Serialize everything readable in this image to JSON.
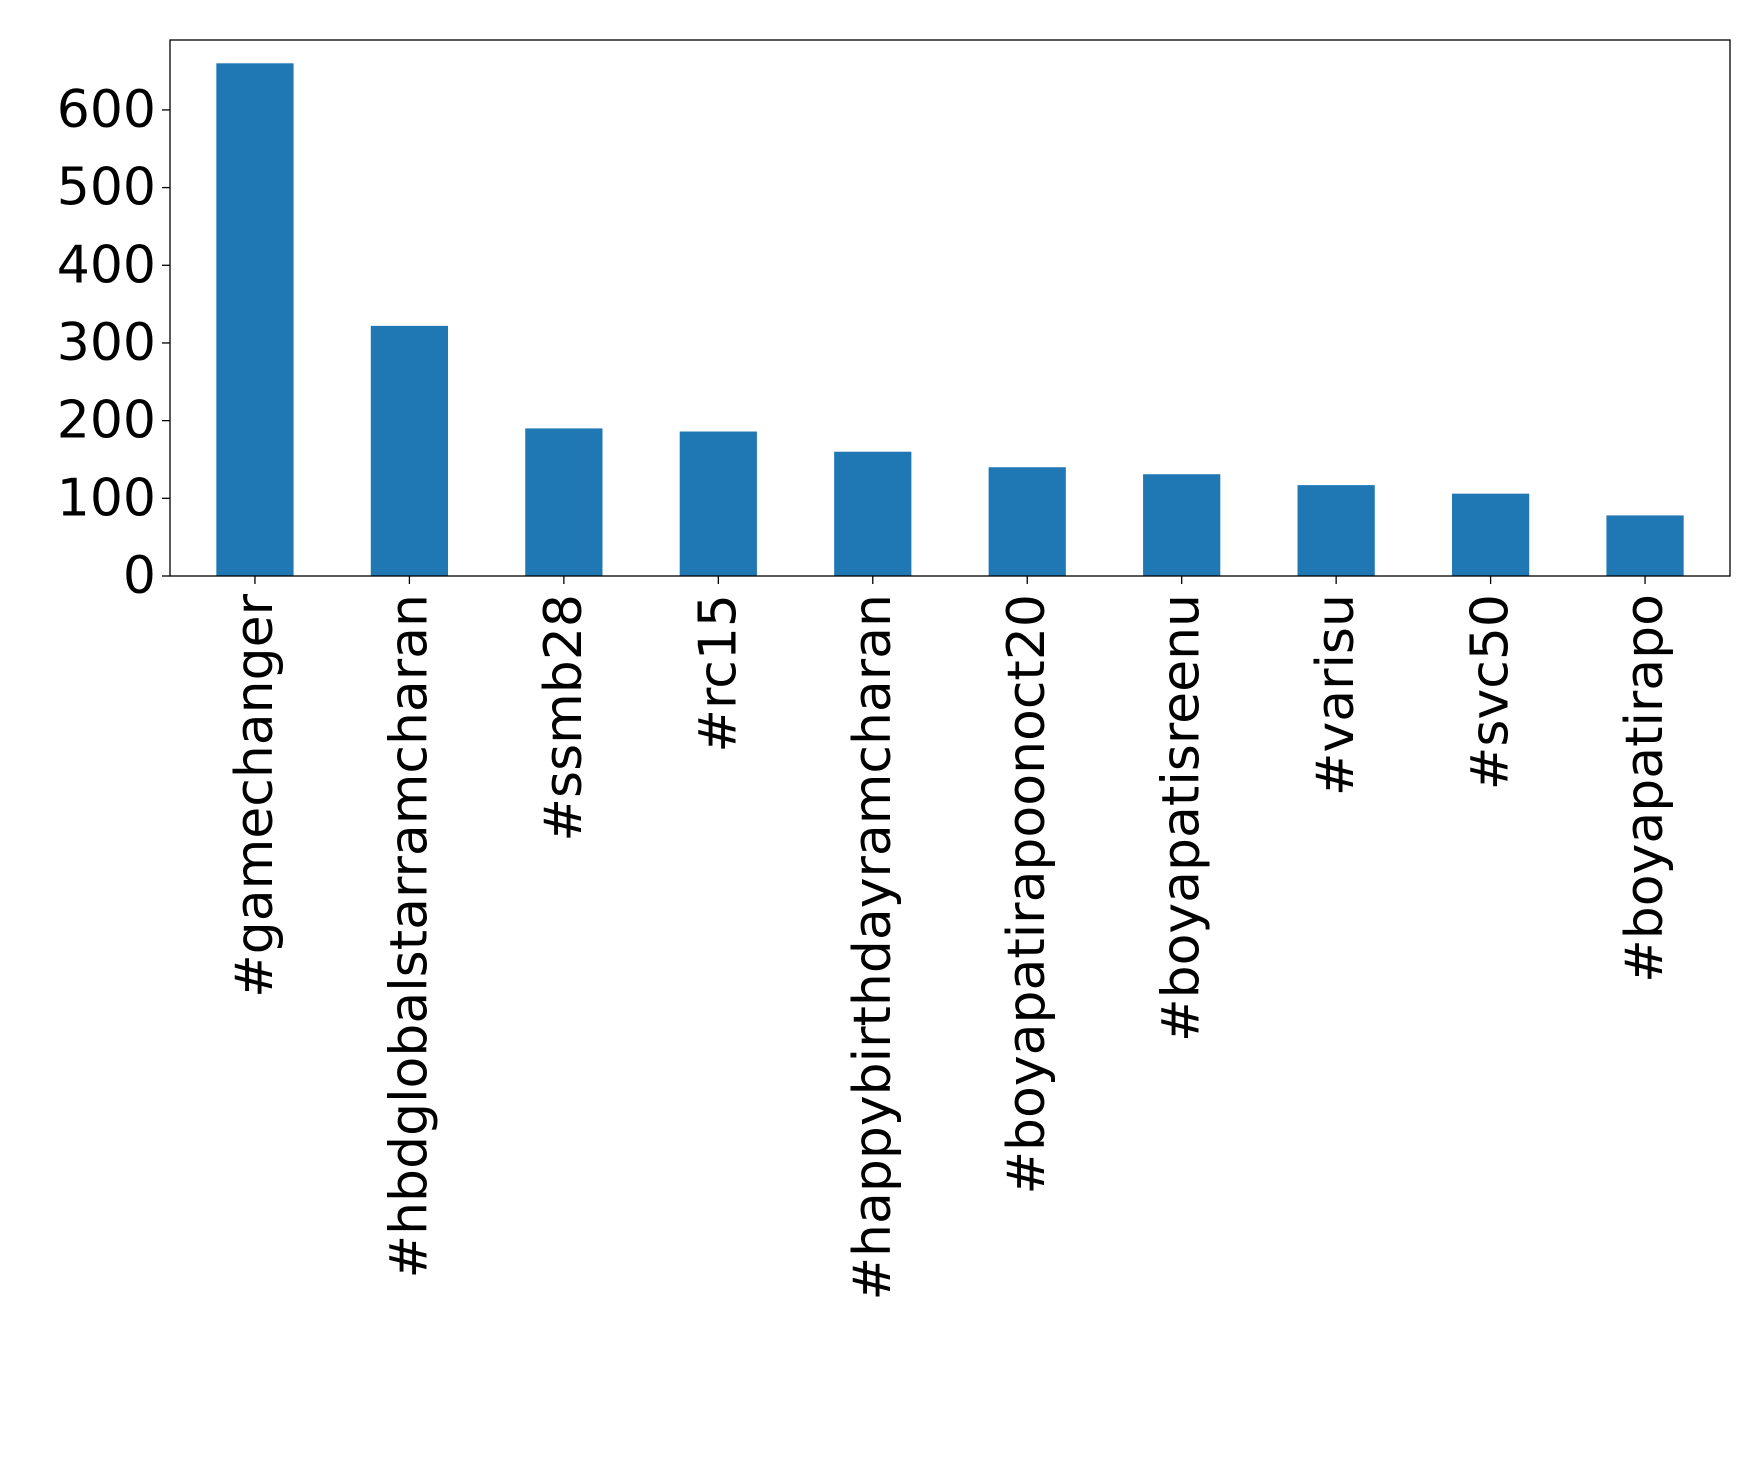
{
  "chart_data": {
    "type": "bar",
    "title": "",
    "xlabel": "",
    "ylabel": "",
    "categories": [
      "#gamechanger",
      "#hbdglobalstarramcharan",
      "#ssmb28",
      "#rc15",
      "#happybirthdayramcharan",
      "#boyapatirapoonoct20",
      "#boyapatisreenu",
      "#varisu",
      "#svc50",
      "#boyapatirapo"
    ],
    "values": [
      660,
      322,
      190,
      186,
      160,
      140,
      131,
      117,
      106,
      78
    ],
    "ylim": [
      0,
      690
    ],
    "yticks": [
      0,
      100,
      200,
      300,
      400,
      500,
      600
    ],
    "ytick_labels": [
      "0",
      "100",
      "200",
      "300",
      "400",
      "500",
      "600"
    ],
    "bar_color": "#1f77b4",
    "grid": false,
    "legend": "none"
  }
}
